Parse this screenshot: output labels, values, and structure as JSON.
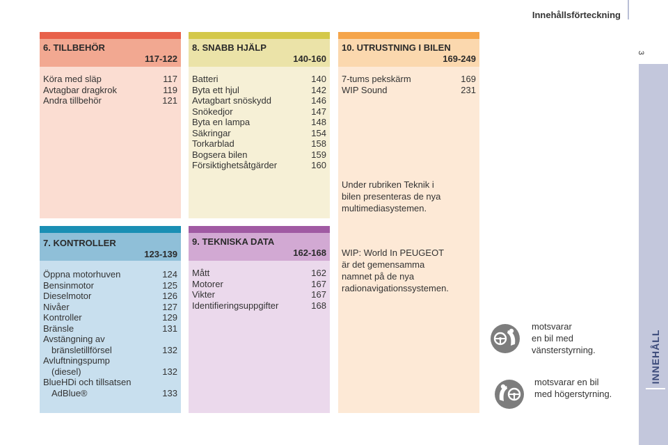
{
  "header": {
    "title": "Innehållsförteckning",
    "page_number": "3"
  },
  "side_tab": {
    "label": "INNEHÅLL"
  },
  "colors": {
    "ch6_bar": "#e8614a",
    "ch6_head": "#f2a891",
    "ch6_body": "#fbddd2",
    "ch8_bar": "#d4c84a",
    "ch8_head": "#ebe3a8",
    "ch8_body": "#f6f0d6",
    "ch10_bar": "#f5a54a",
    "ch10_head": "#fbd8ae",
    "ch10_body": "#fde9d6",
    "ch7_bar": "#1a8fb4",
    "ch7_head": "#8fbfd8",
    "ch7_body": "#c8dfee",
    "ch9_bar": "#a05aa3",
    "ch9_head": "#d2a9d3",
    "ch9_body": "#ebd9ec"
  },
  "sections": {
    "ch6": {
      "title": "6. TILLBEHÖR",
      "range": "117-122",
      "items": [
        {
          "label": "Köra med släp",
          "page": "117"
        },
        {
          "label": "Avtagbar dragkrok",
          "page": "119"
        },
        {
          "label": "Andra tillbehör",
          "page": "121"
        }
      ]
    },
    "ch8": {
      "title": "8. SNABB HJÄLP",
      "range": "140-160",
      "items": [
        {
          "label": "Batteri",
          "page": "140"
        },
        {
          "label": "Byta ett hjul",
          "page": "142"
        },
        {
          "label": "Avtagbart snöskydd",
          "page": "146"
        },
        {
          "label": "Snökedjor",
          "page": "147"
        },
        {
          "label": "Byta en lampa",
          "page": "148"
        },
        {
          "label": "Säkringar",
          "page": "154"
        },
        {
          "label": "Torkarblad",
          "page": "158"
        },
        {
          "label": "Bogsera bilen",
          "page": "159"
        },
        {
          "label": "Försiktighetsåtgärder",
          "page": "160"
        }
      ]
    },
    "ch10": {
      "title": "10. UTRUSTNING I BILEN",
      "range": "169-249",
      "items": [
        {
          "label": "7-tums pekskärm",
          "page": "169"
        },
        {
          "label": "WIP Sound",
          "page": "231"
        }
      ],
      "note1": [
        "Under rubriken Teknik i",
        "bilen presenteras de nya",
        "multimediasystemen."
      ],
      "note2": [
        "WIP: World In PEUGEOT",
        "är det gemensamma",
        "namnet på de nya",
        "radionavigationssystemen."
      ]
    },
    "ch7": {
      "title": "7. KONTROLLER",
      "range": "123-139",
      "items": [
        {
          "label": "Öppna motorhuven",
          "page": "124"
        },
        {
          "label": "Bensinmotor",
          "page": "125"
        },
        {
          "label": "Dieselmotor",
          "page": "126"
        },
        {
          "label": "Nivåer",
          "page": "127"
        },
        {
          "label": "Kontroller",
          "page": "129"
        },
        {
          "label": "Bränsle",
          "page": "131"
        }
      ],
      "wrapped_items": [
        {
          "line1": "Avstängning av",
          "line2": "bränsletillförsel",
          "page": "132"
        },
        {
          "line1": "Avluftningspump",
          "line2": "(diesel)",
          "page": "132"
        },
        {
          "line1": "BlueHDi och tillsatsen",
          "line2": "AdBlue®",
          "page": "133"
        }
      ]
    },
    "ch9": {
      "title": "9. TEKNISKA DATA",
      "range": "162-168",
      "items": [
        {
          "label": "Mått",
          "page": "162"
        },
        {
          "label": "Motorer",
          "page": "167"
        },
        {
          "label": "Vikter",
          "page": "167"
        },
        {
          "label": "Identifieringsuppgifter",
          "page": "168"
        }
      ]
    }
  },
  "legend": {
    "lhd": {
      "icon": "left-hand-drive-icon",
      "text": [
        "motsvarar",
        "en bil med",
        "vänsterstyrning."
      ]
    },
    "rhd": {
      "icon": "right-hand-drive-icon",
      "text": [
        "motsvarar en bil",
        "med högerstyrning."
      ]
    }
  }
}
